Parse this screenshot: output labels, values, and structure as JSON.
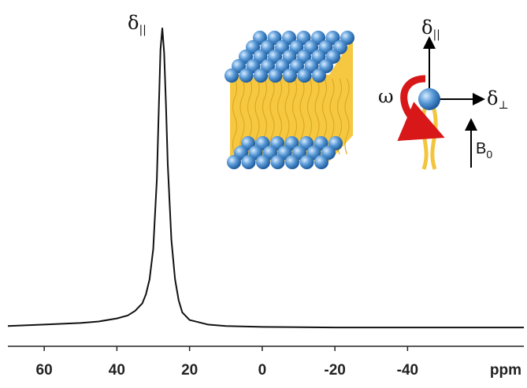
{
  "chart_data": {
    "type": "line",
    "x": [
      70,
      60,
      50,
      45,
      40,
      37,
      35,
      33,
      32,
      31,
      30,
      29,
      28.5,
      28,
      27.5,
      27,
      26.5,
      26,
      25,
      24,
      23,
      22,
      20,
      15,
      10,
      0,
      -20,
      -40,
      -60,
      -72
    ],
    "values": [
      1.5,
      2,
      2.5,
      3,
      4,
      5,
      6.5,
      9,
      12,
      17,
      27,
      50,
      72,
      93,
      100,
      92,
      75,
      55,
      30,
      17,
      10,
      6,
      3.5,
      2,
      1.5,
      1.2,
      1,
      1,
      1,
      1
    ],
    "color": "#111111",
    "xlim": [
      70,
      -72
    ],
    "xticks": [
      60,
      40,
      20,
      0,
      -20,
      -40
    ],
    "x_label": "ppm",
    "ylim": [
      0,
      100
    ],
    "peak_label": {
      "symbol": "δ",
      "subscript": "||"
    }
  },
  "inset": {
    "omega": "ω",
    "delta_parallel": {
      "symbol": "δ",
      "subscript": "||"
    },
    "delta_perp": {
      "symbol": "δ",
      "subscript": "⊥"
    },
    "field": {
      "symbol": "B",
      "subscript": "0"
    }
  }
}
